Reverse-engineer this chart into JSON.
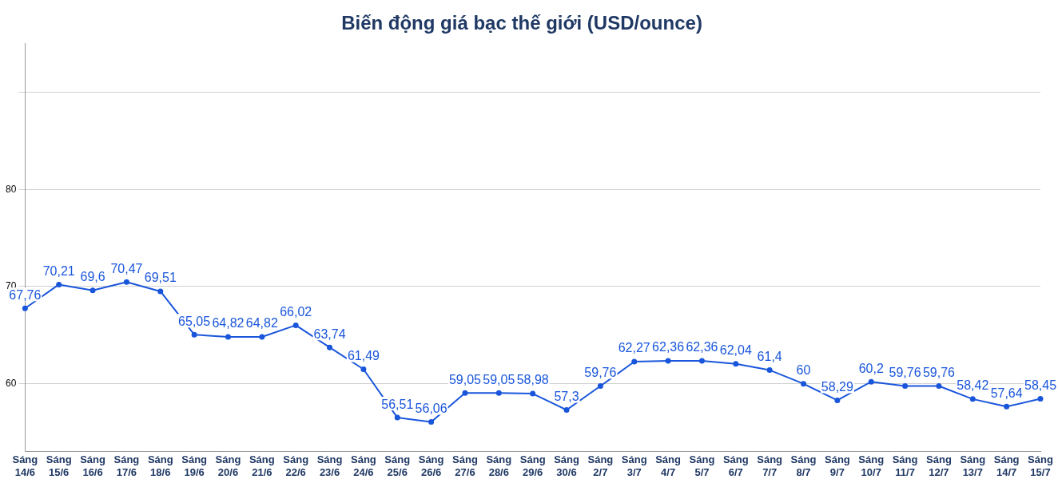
{
  "chart_data": {
    "type": "line",
    "title": "Biến động giá bạc thế giới (USD/ounce)",
    "categories": [
      "Sáng 14/6",
      "Sáng 15/6",
      "Sáng 16/6",
      "Sáng 17/6",
      "Sáng 18/6",
      "Sáng 19/6",
      "Sáng 20/6",
      "Sáng 21/6",
      "Sáng 22/6",
      "Sáng 23/6",
      "Sáng 24/6",
      "Sáng 25/6",
      "Sáng 26/6",
      "Sáng 27/6",
      "Sáng 28/6",
      "Sáng 29/6",
      "Sáng 30/6",
      "Sáng 2/7",
      "Sáng 3/7",
      "Sáng 4/7",
      "Sáng 5/7",
      "Sáng 6/7",
      "Sáng 7/7",
      "Sáng 8/7",
      "Sáng 9/7",
      "Sáng 10/7",
      "Sáng 11/7",
      "Sáng 12/7",
      "Sáng 13/7",
      "Sáng 14/7",
      "Sáng 15/7"
    ],
    "series": [
      {
        "color": "#1a56db",
        "values": [
          67.76,
          70.21,
          69.6,
          70.47,
          69.51,
          65.05,
          64.82,
          64.82,
          66.02,
          63.74,
          61.49,
          56.51,
          56.06,
          59.05,
          59.05,
          58.98,
          57.3,
          59.76,
          62.27,
          62.36,
          62.36,
          62.04,
          61.4,
          60,
          58.29,
          60.2,
          59.76,
          59.76,
          58.42,
          57.64,
          58.45
        ],
        "value_labels": [
          "67,76",
          "70,21",
          "69,6",
          "70,47",
          "69,51",
          "65,05",
          "64,82",
          "64,82",
          "66,02",
          "63,74",
          "61,49",
          "56,51",
          "56,06",
          "59,05",
          "59,05",
          "58,98",
          "57,3",
          "59,76",
          "62,27",
          "62,36",
          "62,36",
          "62,04",
          "61,4",
          "60",
          "58,29",
          "60,2",
          "59,76",
          "59,76",
          "58,42",
          "57,64",
          "58,45"
        ]
      }
    ],
    "ylim": [
      53,
      95
    ],
    "yticks": [
      60,
      70,
      80,
      {
        "value": 90,
        "label": null
      }
    ],
    "grid": "y",
    "legend": false,
    "marker": "circle",
    "line_style": "solid"
  }
}
